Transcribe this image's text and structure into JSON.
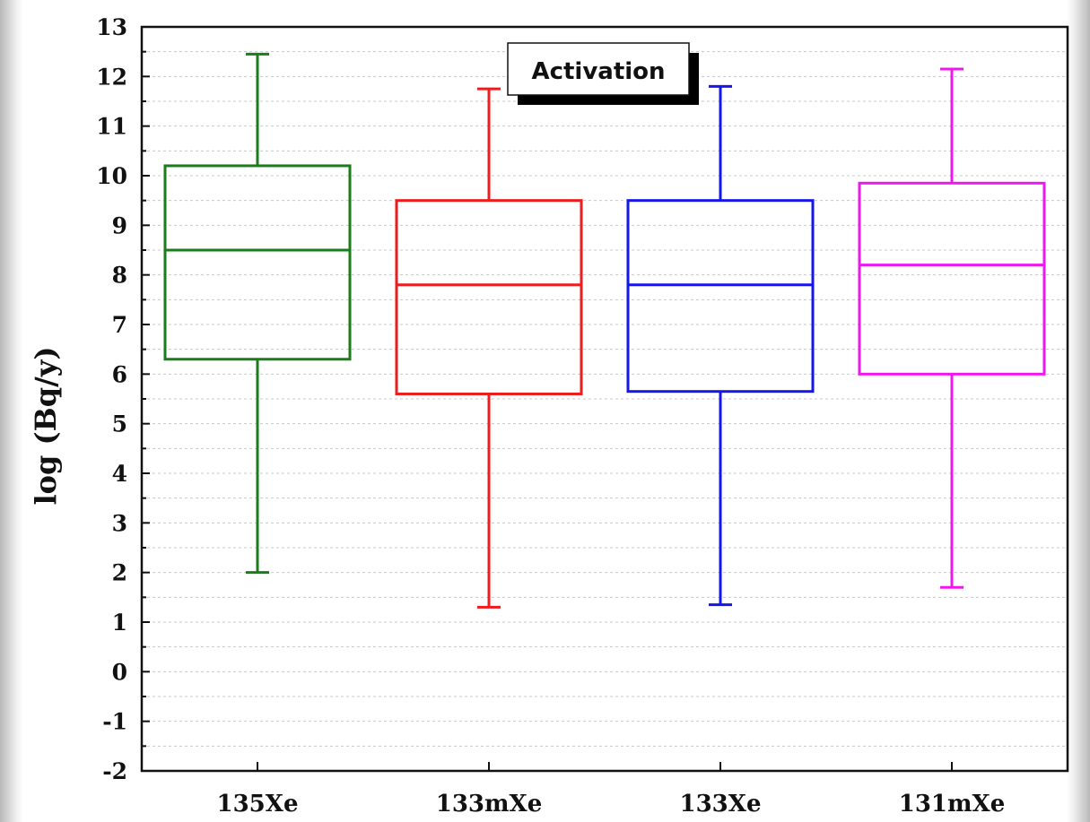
{
  "chart_data": {
    "type": "box",
    "title": "",
    "legend_text": "Activation",
    "legend_position": "top-center",
    "xlabel": "",
    "ylabel": "log (Bq/y)",
    "ylim": [
      -2,
      13
    ],
    "yticks": [
      -2,
      -1,
      0,
      1,
      2,
      3,
      4,
      5,
      6,
      7,
      8,
      9,
      10,
      11,
      12,
      13
    ],
    "grid": "horizontal-dashed",
    "categories": [
      "135Xe",
      "133mXe",
      "133Xe",
      "131mXe"
    ],
    "series": [
      {
        "category": "135Xe",
        "color": "#1a7d1a",
        "whisker_low": 2.0,
        "q1": 6.3,
        "median": 8.5,
        "q3": 10.2,
        "whisker_high": 12.45
      },
      {
        "category": "133mXe",
        "color": "#ee1c1c",
        "whisker_low": 1.3,
        "q1": 5.6,
        "median": 7.8,
        "q3": 9.5,
        "whisker_high": 11.75
      },
      {
        "category": "133Xe",
        "color": "#1515ee",
        "whisker_low": 1.35,
        "q1": 5.65,
        "median": 7.8,
        "q3": 9.5,
        "whisker_high": 11.8
      },
      {
        "category": "131mXe",
        "color": "#ee18ee",
        "whisker_low": 1.7,
        "q1": 6.0,
        "median": 8.2,
        "q3": 9.85,
        "whisker_high": 12.15
      }
    ]
  }
}
